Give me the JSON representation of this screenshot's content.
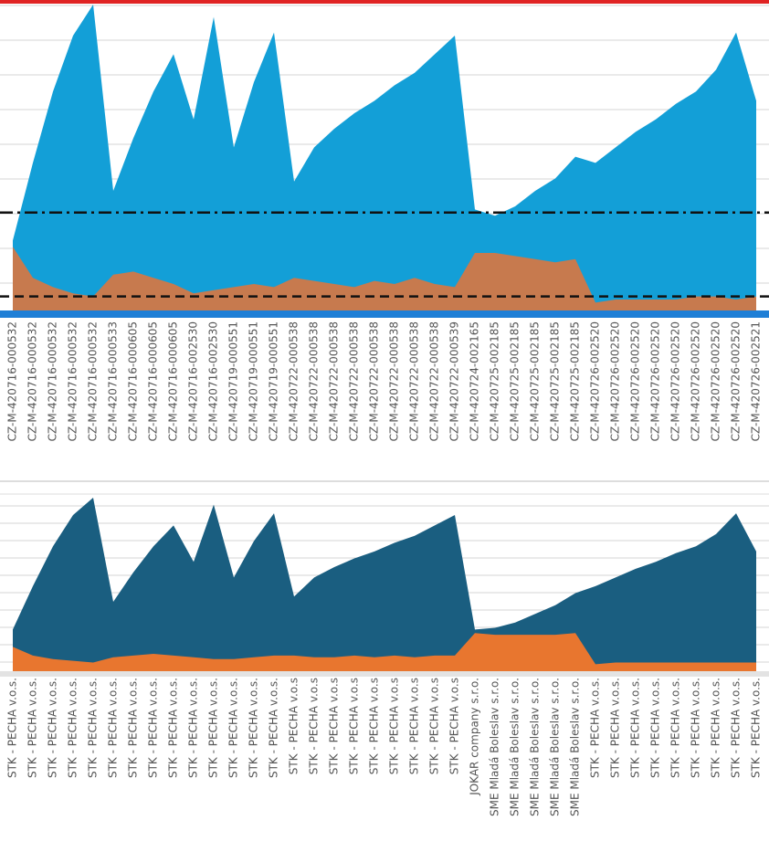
{
  "chart_data": [
    {
      "type": "area",
      "categories": [
        "CZ-M-420716-000532",
        "CZ-M-420716-000532",
        "CZ-M-420716-000532",
        "CZ-M-420716-000532",
        "CZ-M-420716-000532",
        "CZ-M-420716-000533",
        "CZ-M-420716-000605",
        "CZ-M-420716-000605",
        "CZ-M-420716-000605",
        "CZ-M-420716-002530",
        "CZ-M-420716-002530",
        "CZ-M-420719-000551",
        "CZ-M-420719-000551",
        "CZ-M-420719-000551",
        "CZ-M-420722-000538",
        "CZ-M-420722-000538",
        "CZ-M-420722-000538",
        "CZ-M-420722-000538",
        "CZ-M-420722-000538",
        "CZ-M-420722-000538",
        "CZ-M-420722-000538",
        "CZ-M-420722-000538",
        "CZ-M-420722-000539",
        "CZ-M-420724-002165",
        "CZ-M-420725-002185",
        "CZ-M-420725-002185",
        "CZ-M-420725-002185",
        "CZ-M-420725-002185",
        "CZ-M-420725-002185",
        "CZ-M-420726-002520",
        "CZ-M-420726-002520",
        "CZ-M-420726-002520",
        "CZ-M-420726-002520",
        "CZ-M-420726-002520",
        "CZ-M-420726-002520",
        "CZ-M-420726-002520",
        "CZ-M-420726-002520",
        "CZ-M-420726-002521"
      ],
      "series": [
        {
          "color": "#139fd7",
          "values": [
            24,
            49,
            72,
            90,
            100,
            40,
            57,
            72,
            84,
            63,
            96,
            54,
            75,
            91,
            43,
            54,
            60,
            65,
            69,
            74,
            78,
            84,
            90,
            34,
            32,
            35,
            40,
            44,
            51,
            49,
            54,
            59,
            63,
            68,
            72,
            79,
            91,
            69
          ]
        },
        {
          "color": "#c77a4e",
          "values": [
            22,
            12,
            9,
            7,
            6,
            13,
            14,
            12,
            10,
            7,
            8,
            9,
            10,
            9,
            12,
            11,
            10,
            9,
            11,
            10,
            12,
            10,
            9,
            20,
            20,
            19,
            18,
            17,
            18,
            4,
            5,
            5,
            5,
            5,
            6,
            6,
            5,
            6
          ]
        }
      ],
      "reference_lines": [
        {
          "value": 33,
          "style": "dash-dot"
        },
        {
          "value": 6,
          "style": "dash"
        }
      ],
      "ylim": [
        0,
        100
      ]
    },
    {
      "type": "area",
      "categories": [
        "STK - PECHA v.o.s.",
        "STK - PECHA v.o.s.",
        "STK - PECHA v.o.s.",
        "STK - PECHA v.o.s.",
        "STK - PECHA v.o.s.",
        "STK - PECHA v.o.s.",
        "STK - PECHA v.o.s.",
        "STK - PECHA v.o.s.",
        "STK - PECHA v.o.s.",
        "STK - PECHA v.o.s.",
        "STK - PECHA v.o.s.",
        "STK - PECHA v.o.s.",
        "STK - PECHA v.o.s.",
        "STK - PECHA v.o.s.",
        "STK - PECHA v.o.s",
        "STK - PECHA v.o.s",
        "STK - PECHA v.o.s",
        "STK - PECHA v.o.s",
        "STK - PECHA v.o.s",
        "STK - PECHA v.o.s",
        "STK - PECHA v.o.s",
        "STK - PECHA v.o.s",
        "STK - PECHA v.o.s",
        "JOKAR company s.r.o.",
        "SME Mladá Boleslav s.r.o.",
        "SME Mladá Boleslav s.r.o.",
        "SME Mladá Boleslav s.r.o.",
        "SME Mladá Boleslav s.r.o.",
        "SME Mladá Boleslav s.r.o.",
        "STK - PECHA v.o.s.",
        "STK - PECHA v.o.s.",
        "STK - PECHA v.o.s.",
        "STK - PECHA v.o.s.",
        "STK - PECHA v.o.s.",
        "STK - PECHA v.o.s.",
        "STK - PECHA v.o.s.",
        "STK - PECHA v.o.s.",
        "STK - PECHA v.o.s."
      ],
      "series": [
        {
          "color": "#1a5e80",
          "values": [
            24,
            49,
            72,
            90,
            100,
            40,
            57,
            72,
            84,
            63,
            96,
            54,
            75,
            91,
            43,
            54,
            60,
            65,
            69,
            74,
            78,
            84,
            90,
            24,
            25,
            28,
            33,
            38,
            45,
            49,
            54,
            59,
            63,
            68,
            72,
            79,
            91,
            69
          ]
        },
        {
          "color": "#e8762f",
          "values": [
            14,
            9,
            7,
            6,
            5,
            8,
            9,
            10,
            9,
            8,
            7,
            7,
            8,
            9,
            9,
            8,
            8,
            9,
            8,
            9,
            8,
            9,
            9,
            22,
            21,
            21,
            21,
            21,
            22,
            4,
            5,
            5,
            5,
            5,
            5,
            5,
            5,
            5
          ]
        }
      ],
      "ylim": [
        0,
        100
      ]
    }
  ]
}
